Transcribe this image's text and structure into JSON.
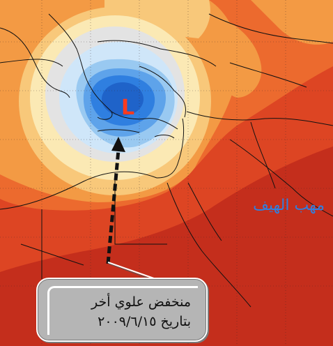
{
  "map": {
    "low_marker": "L",
    "region_label": "مهب الهيف",
    "callout": {
      "line1": "منخفض علوي أخر",
      "line2": "بتاريخ ٢٠٠٩/٦/١٥"
    },
    "colors": {
      "deep_red": "#c42e1c",
      "red": "#dd4523",
      "orange_red": "#ec6a2e",
      "orange": "#f39a44",
      "light_orange": "#f8c87a",
      "pale_yellow": "#fbe9b4",
      "light_gray": "#e3e3e3",
      "pale_blue": "#cfe6f9",
      "light_blue": "#99c9f1",
      "blue": "#5ea3ea",
      "deep_blue": "#2f7fe0",
      "marker_red": "#ff3b1f",
      "arrow": "#111111"
    }
  }
}
